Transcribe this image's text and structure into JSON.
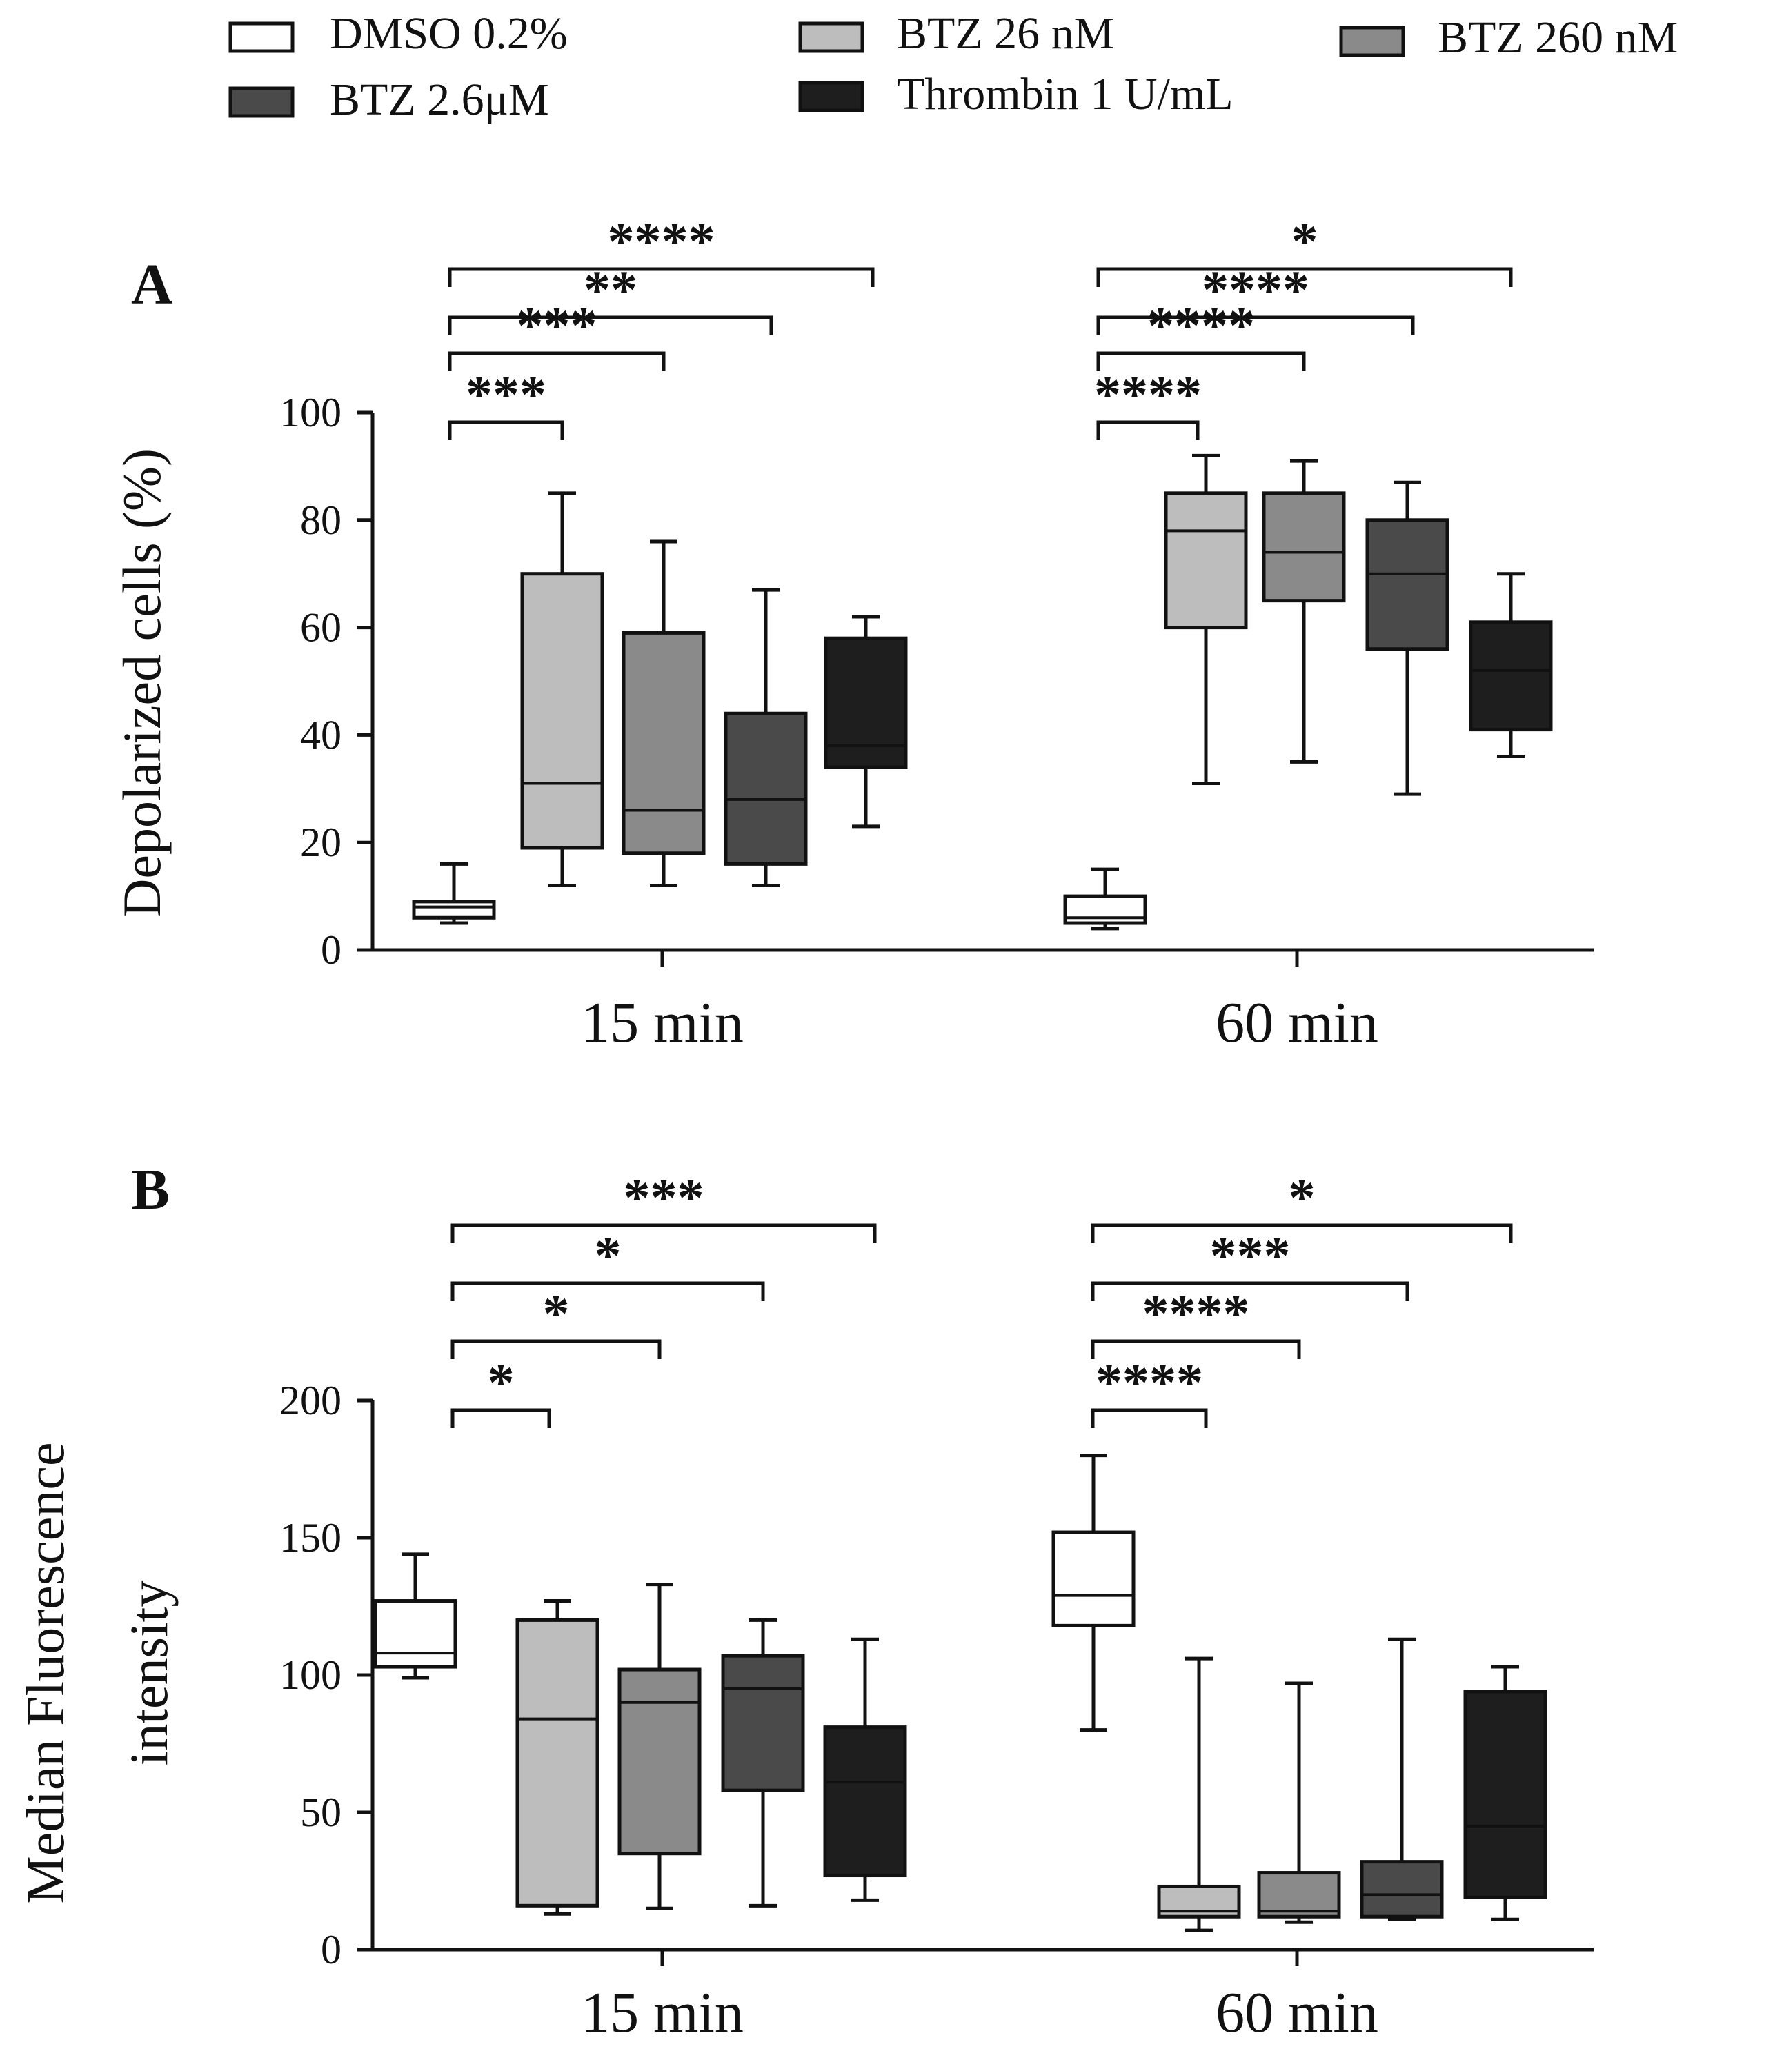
{
  "legend": [
    {
      "label": "DMSO 0.2%",
      "color": "#ffffff"
    },
    {
      "label": "BTZ 26 nM",
      "color": "#bdbdbd"
    },
    {
      "label": "BTZ 260 nM",
      "color": "#8a8a8a"
    },
    {
      "label": "BTZ 2.6μM",
      "color": "#4a4a4a"
    },
    {
      "label": "Thrombin 1 U/mL",
      "color": "#1e1e1e"
    }
  ],
  "chart_data": [
    {
      "type": "boxplot",
      "panel": "A",
      "ylabel": "Depolarized cells (%)",
      "ylim": [
        0,
        100
      ],
      "yticks": [
        0,
        20,
        40,
        60,
        80,
        100
      ],
      "groups": [
        "15 min",
        "60 min"
      ],
      "series_names": [
        "DMSO 0.2%",
        "BTZ 26 nM",
        "BTZ 260 nM",
        "BTZ 2.6μM",
        "Thrombin 1 U/mL"
      ],
      "boxes": [
        [
          {
            "min": 5,
            "q1": 6,
            "median": 8,
            "q3": 9,
            "max": 16
          },
          {
            "min": 12,
            "q1": 19,
            "median": 31,
            "q3": 70,
            "max": 85
          },
          {
            "min": 12,
            "q1": 18,
            "median": 26,
            "q3": 59,
            "max": 76
          },
          {
            "min": 12,
            "q1": 16,
            "median": 28,
            "q3": 44,
            "max": 67
          },
          {
            "min": 23,
            "q1": 34,
            "median": 38,
            "q3": 58,
            "max": 62
          }
        ],
        [
          {
            "min": 4,
            "q1": 5,
            "median": 6,
            "q3": 10,
            "max": 15
          },
          {
            "min": 31,
            "q1": 60,
            "median": 78,
            "q3": 85,
            "max": 92
          },
          {
            "min": 35,
            "q1": 65,
            "median": 74,
            "q3": 85,
            "max": 91
          },
          {
            "min": 29,
            "q1": 56,
            "median": 70,
            "q3": 80,
            "max": 87
          },
          {
            "min": 36,
            "q1": 41,
            "median": 52,
            "q3": 61,
            "max": 70
          }
        ]
      ],
      "significance": [
        [
          {
            "to": 1,
            "label": "***"
          },
          {
            "to": 2,
            "label": "***"
          },
          {
            "to": 3,
            "label": "**"
          },
          {
            "to": 4,
            "label": "****"
          }
        ],
        [
          {
            "to": 1,
            "label": "****"
          },
          {
            "to": 2,
            "label": "****"
          },
          {
            "to": 3,
            "label": "****"
          },
          {
            "to": 4,
            "label": "*"
          }
        ]
      ]
    },
    {
      "type": "boxplot",
      "panel": "B",
      "ylabel": [
        "Median Fluorescence",
        "intensity"
      ],
      "ylim": [
        0,
        200
      ],
      "yticks": [
        0,
        50,
        100,
        150,
        200
      ],
      "groups": [
        "15 min",
        "60 min"
      ],
      "series_names": [
        "DMSO 0.2%",
        "BTZ 26 nM",
        "BTZ 260 nM",
        "BTZ 2.6μM",
        "Thrombin 1 U/mL"
      ],
      "boxes": [
        [
          {
            "min": 99,
            "q1": 103,
            "median": 108,
            "q3": 127,
            "max": 144
          },
          {
            "min": 13,
            "q1": 16,
            "median": 84,
            "q3": 120,
            "max": 127
          },
          {
            "min": 15,
            "q1": 35,
            "median": 90,
            "q3": 102,
            "max": 133
          },
          {
            "min": 16,
            "q1": 58,
            "median": 95,
            "q3": 107,
            "max": 120
          },
          {
            "min": 18,
            "q1": 27,
            "median": 61,
            "q3": 81,
            "max": 113
          }
        ],
        [
          {
            "min": 80,
            "q1": 118,
            "median": 129,
            "q3": 152,
            "max": 180
          },
          {
            "min": 7,
            "q1": 12,
            "median": 14,
            "q3": 23,
            "max": 106
          },
          {
            "min": 10,
            "q1": 12,
            "median": 14,
            "q3": 28,
            "max": 97
          },
          {
            "min": 11,
            "q1": 12,
            "median": 20,
            "q3": 32,
            "max": 113
          },
          {
            "min": 11,
            "q1": 19,
            "median": 45,
            "q3": 94,
            "max": 103
          }
        ]
      ],
      "significance": [
        [
          {
            "to": 1,
            "label": "*"
          },
          {
            "to": 2,
            "label": "*"
          },
          {
            "to": 3,
            "label": "*"
          },
          {
            "to": 4,
            "label": "***"
          }
        ],
        [
          {
            "to": 1,
            "label": "****"
          },
          {
            "to": 2,
            "label": "****"
          },
          {
            "to": 3,
            "label": "***"
          },
          {
            "to": 4,
            "label": "*"
          }
        ]
      ]
    }
  ]
}
